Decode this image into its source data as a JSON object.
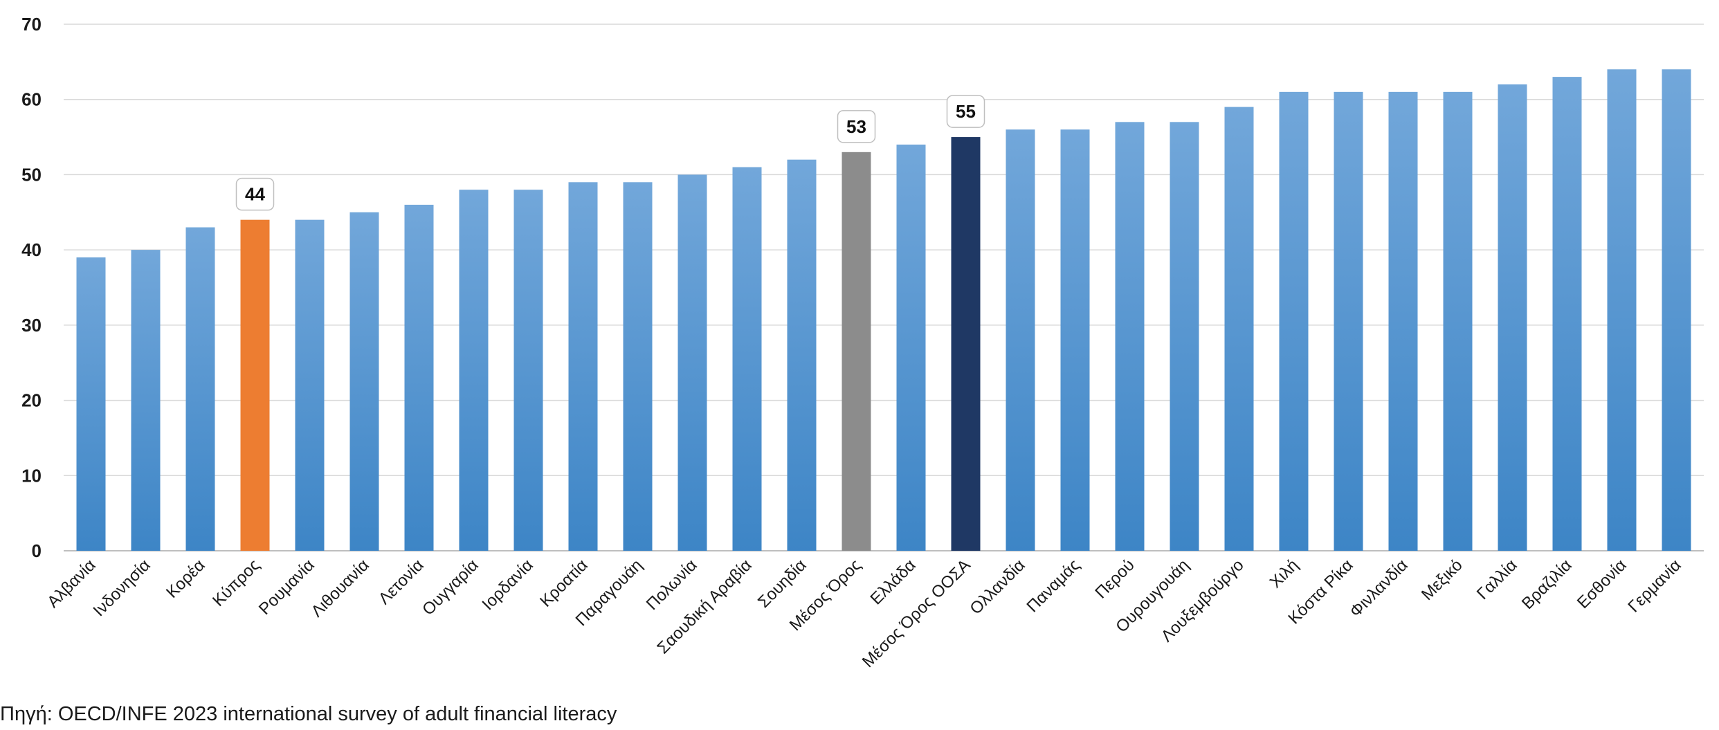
{
  "chart_data": {
    "type": "bar",
    "title": "",
    "xlabel": "",
    "ylabel": "",
    "ylim": [
      0,
      70
    ],
    "yticks": [
      0,
      10,
      20,
      30,
      40,
      50,
      60,
      70
    ],
    "grid": true,
    "legend": "none",
    "categories": [
      "Αλβανία",
      "Ινδονησία",
      "Κορέα",
      "Κύπρος",
      "Ρουμανία",
      "Λιθουανία",
      "Λετονία",
      "Ουγγαρία",
      "Ιορδανία",
      "Κροατία",
      "Παραγουάη",
      "Πολωνία",
      "Σαουδική Αραβία",
      "Σουηδία",
      "Μέσος Όρος",
      "Ελλάδα",
      "Μέσος Όρος ΟΟΣΑ",
      "Ολλανδία",
      "Παναμάς",
      "Περού",
      "Ουρουγουάη",
      "Λουξεμβούργο",
      "Χιλή",
      "Κόστα Ρίκα",
      "Φινλανδία",
      "Μεξικό",
      "Γαλλία",
      "Βραζιλία",
      "Εσθονία",
      "Γερμανία"
    ],
    "values": [
      39,
      40,
      43,
      44,
      44,
      45,
      46,
      48,
      48,
      49,
      49,
      50,
      51,
      52,
      53,
      54,
      55,
      56,
      56,
      57,
      57,
      59,
      61,
      61,
      61,
      61,
      62,
      63,
      64,
      64
    ],
    "bar_colors": {
      "default": "#5b9bd5",
      "Κύπρος": "#ed7d31",
      "Μέσος Όρος": "#8c8c8c",
      "Μέσος Όρος ΟΟΣΑ": "#1f3864"
    },
    "data_labels": {
      "Κύπρος": "44",
      "Μέσος Όρος": "53",
      "Μέσος Όρος ΟΟΣΑ": "55"
    }
  },
  "source_note": "Πηγή: OECD/INFE 2023 international survey of adult financial literacy"
}
